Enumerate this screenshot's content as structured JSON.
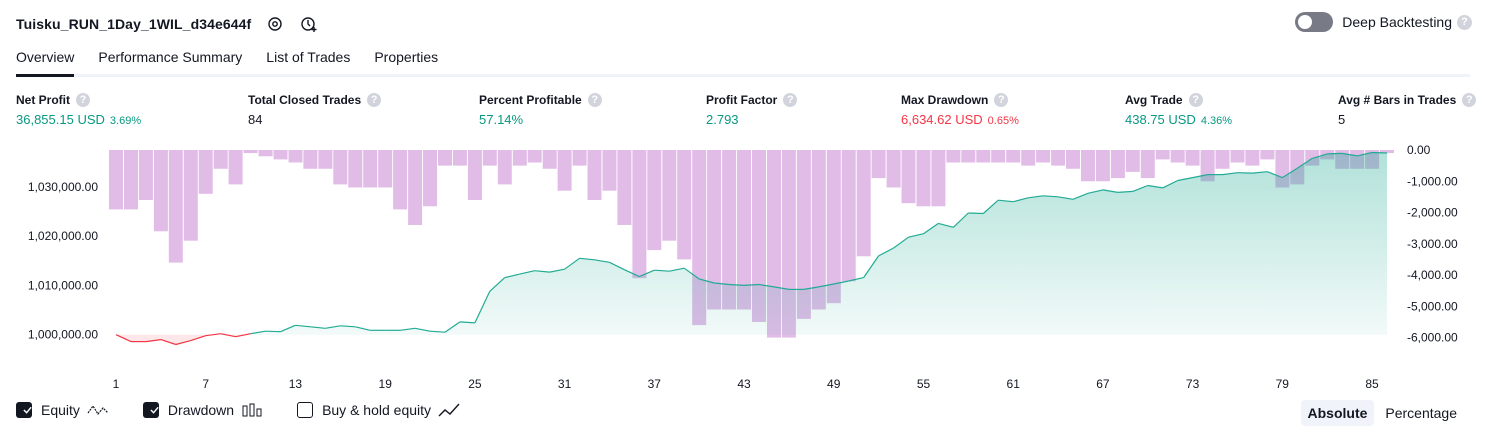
{
  "header": {
    "title": "Tuisku_RUN_1Day_1WIL_d34e644f",
    "deep_backtesting_label": "Deep Backtesting",
    "deep_backtesting_enabled": false
  },
  "tabs": [
    {
      "label": "Overview",
      "active": true
    },
    {
      "label": "Performance Summary",
      "active": false
    },
    {
      "label": "List of Trades",
      "active": false
    },
    {
      "label": "Properties",
      "active": false
    }
  ],
  "help_glyph": "?",
  "metrics": [
    {
      "label": "Net Profit",
      "value": "36,855.15 USD",
      "pct": "3.69%",
      "color": "green"
    },
    {
      "label": "Total Closed Trades",
      "value": "84",
      "pct": "",
      "color": "dark"
    },
    {
      "label": "Percent Profitable",
      "value": "57.14%",
      "pct": "",
      "color": "green"
    },
    {
      "label": "Profit Factor",
      "value": "2.793",
      "pct": "",
      "color": "green"
    },
    {
      "label": "Max Drawdown",
      "value": "6,634.62 USD",
      "pct": "0.65%",
      "color": "red"
    },
    {
      "label": "Avg Trade",
      "value": "438.75 USD",
      "pct": "4.36%",
      "color": "green"
    },
    {
      "label": "Avg # Bars in Trades",
      "value": "5",
      "pct": "",
      "color": "dark"
    }
  ],
  "chart_data": {
    "type": "area",
    "x_ticks": [
      "1",
      "7",
      "13",
      "19",
      "25",
      "31",
      "37",
      "43",
      "49",
      "55",
      "61",
      "67",
      "73",
      "79",
      "85"
    ],
    "left_axis": {
      "ticks": [
        "1,000,000.00",
        "1,010,000.00",
        "1,020,000.00",
        "1,030,000.00"
      ],
      "tick_values": [
        1000000,
        1010000,
        1020000,
        1030000
      ],
      "range": [
        997500,
        1037500
      ]
    },
    "right_axis": {
      "ticks": [
        "0.00",
        "-1,000.00",
        "-2,000.00",
        "-3,000.00",
        "-4,000.00",
        "-5,000.00",
        "-6,000.00"
      ],
      "tick_values": [
        0,
        -1000,
        -2000,
        -3000,
        -4000,
        -5000,
        -6000
      ],
      "range": [
        -6300,
        0
      ]
    },
    "colors": {
      "equity_line": "#22ab94",
      "equity_loss": "#f23645",
      "equity_fill": "#22ab94",
      "drawdown_bar": "#ce93d8"
    },
    "series": [
      {
        "name": "Equity",
        "values": [
          1000000,
          998600,
          998600,
          999000,
          998000,
          998800,
          999800,
          1000200,
          999600,
          1000200,
          1000700,
          1000600,
          1001900,
          1001600,
          1001300,
          1001800,
          1001600,
          1000900,
          1000900,
          1000900,
          1001300,
          1000700,
          1000500,
          1002600,
          1002400,
          1008800,
          1011600,
          1012300,
          1013000,
          1012700,
          1013300,
          1015500,
          1015200,
          1014700,
          1013200,
          1011800,
          1013100,
          1012900,
          1013500,
          1011300,
          1010500,
          1010200,
          1010000,
          1010200,
          1009700,
          1009200,
          1009200,
          1009700,
          1010300,
          1010900,
          1011600,
          1016000,
          1017600,
          1019800,
          1020500,
          1022600,
          1021800,
          1024700,
          1024600,
          1027300,
          1027000,
          1027800,
          1028200,
          1028000,
          1027500,
          1028700,
          1029400,
          1028900,
          1029100,
          1030300,
          1029800,
          1031300,
          1031900,
          1032500,
          1032500,
          1032900,
          1032800,
          1033100,
          1031900,
          1033800,
          1035800,
          1036700,
          1036800,
          1036300,
          1037000,
          1036900
        ]
      },
      {
        "name": "Drawdown",
        "values": [
          -1900,
          -1900,
          -1600,
          -2600,
          -3600,
          -2900,
          -1400,
          -600,
          -1100,
          -100,
          -200,
          -300,
          -400,
          -600,
          -600,
          -1100,
          -1200,
          -1200,
          -1200,
          -1900,
          -2400,
          -1800,
          -500,
          -500,
          -1600,
          -500,
          -1100,
          -500,
          -400,
          -600,
          -1300,
          -500,
          -1600,
          -1300,
          -2400,
          -4100,
          -3200,
          -2900,
          -3500,
          -5600,
          -5100,
          -5100,
          -5100,
          -5500,
          -6000,
          -6000,
          -5400,
          -5100,
          -4900,
          -4200,
          -3400,
          -900,
          -1200,
          -1700,
          -1800,
          -1800,
          -400,
          -400,
          -400,
          -400,
          -400,
          -500,
          -400,
          -500,
          -600,
          -1000,
          -1000,
          -900,
          -700,
          -900,
          -300,
          -400,
          -500,
          -1000,
          -600,
          -400,
          -500,
          -300,
          -1200,
          -1100,
          -500,
          -300,
          -600,
          -600,
          -600,
          -100
        ]
      },
      {
        "name": "Buy & hold equity",
        "values": []
      }
    ]
  },
  "legend": [
    {
      "name": "Equity",
      "checked": true
    },
    {
      "name": "Drawdown",
      "checked": true
    },
    {
      "name": "Buy & hold equity",
      "checked": false
    }
  ],
  "mode": {
    "absolute": "Absolute",
    "percentage": "Percentage",
    "active": "absolute"
  }
}
